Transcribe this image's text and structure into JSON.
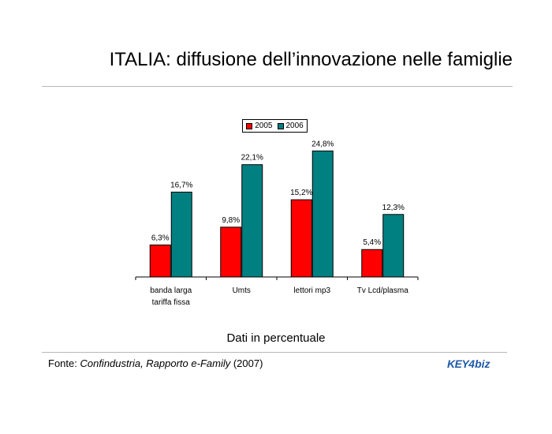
{
  "title": "ITALIA: diffusione dell’innovazione nelle famiglie",
  "note": "Dati in percentuale",
  "source": {
    "prefix": "Fonte: ",
    "italic": "Confindustria, Rapporto e-Family",
    "suffix": " (2007)"
  },
  "logo": {
    "left": "KEY",
    "mid": "4",
    "right": "biz"
  },
  "colors": {
    "2005": "#ff0000",
    "2006": "#008080"
  },
  "chart_data": {
    "type": "bar",
    "categories": [
      [
        "banda larga",
        "tariffa fissa"
      ],
      [
        "Umts"
      ],
      [
        "lettori mp3"
      ],
      [
        "Tv Lcd/plasma"
      ]
    ],
    "series": [
      {
        "name": "2005",
        "values": [
          6.3,
          9.8,
          15.2,
          5.4
        ],
        "labels": [
          "6,3%",
          "9,8%",
          "15,2%",
          "5,4%"
        ]
      },
      {
        "name": "2006",
        "values": [
          16.7,
          22.1,
          24.8,
          12.3
        ],
        "labels": [
          "16,7%",
          "22,1%",
          "24,8%",
          "12,3%"
        ]
      }
    ],
    "ylim": [
      0,
      25
    ]
  }
}
